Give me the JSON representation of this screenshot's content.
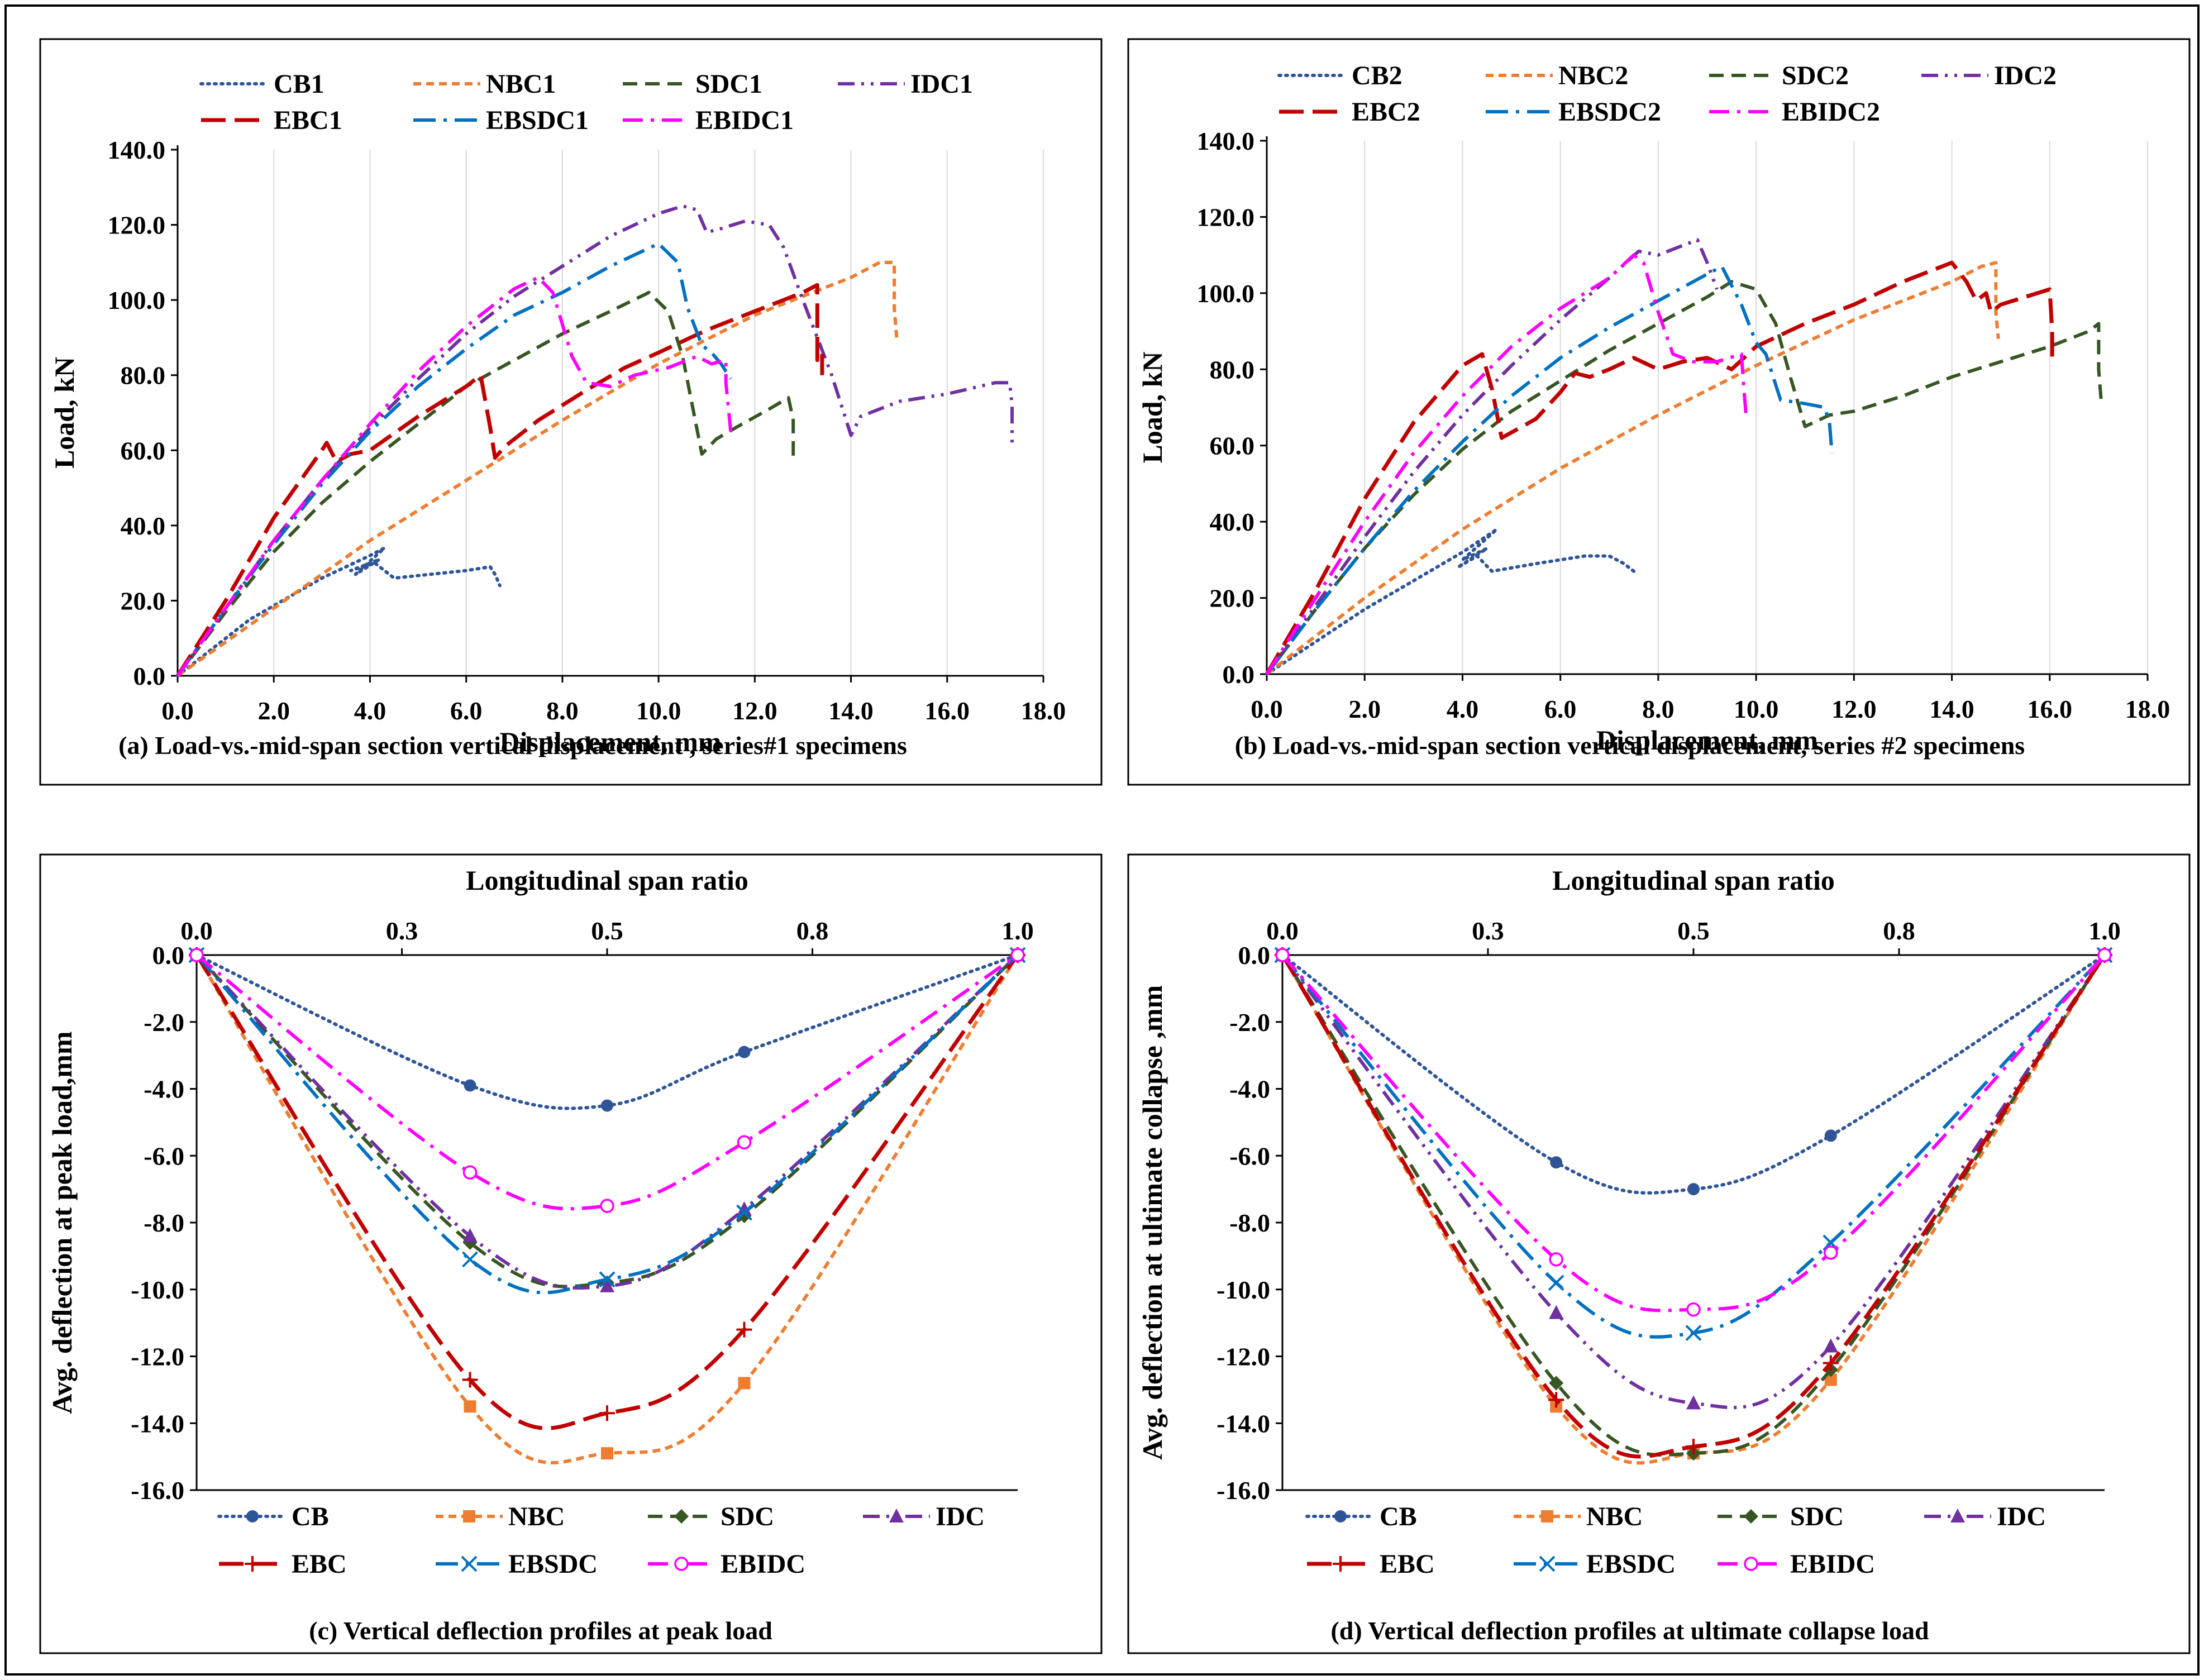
{
  "colors": {
    "CB": "#2f5597",
    "NBC": "#ed7d31",
    "SDC": "#375623",
    "IDC": "#7030a0",
    "EBC": "#c00000",
    "EBSDC": "#0070c0",
    "EBIDC": "#ff00ff"
  },
  "chart_data": [
    {
      "type": "line",
      "id": "a",
      "caption": "(a) Load-vs.-mid-span section  vertical displacement , series#1 specimens",
      "xlabel": "Displacement, mm",
      "ylabel": "Load, kN",
      "xlim": [
        0,
        18
      ],
      "ylim": [
        0,
        140
      ],
      "xticks": [
        "0.0",
        "2.0",
        "4.0",
        "6.0",
        "8.0",
        "10.0",
        "12.0",
        "14.0",
        "16.0",
        "18.0"
      ],
      "yticks": [
        "0.0",
        "20.0",
        "40.0",
        "60.0",
        "80.0",
        "100.0",
        "120.0",
        "140.0"
      ],
      "grid": "vertical",
      "legend": [
        "CB1",
        "NBC1",
        "SDC1",
        "IDC1",
        "EBC1",
        "EBSDC1",
        "EBIDC1"
      ],
      "series": [
        {
          "name": "CB1",
          "key": "CB",
          "x": [
            0,
            1.5,
            3.0,
            4.0,
            4.3,
            3.7,
            4.2,
            3.6,
            4.1,
            4.5,
            6.0,
            6.5,
            6.6,
            6.7
          ],
          "y": [
            0,
            15,
            26,
            32,
            34,
            27,
            31,
            28,
            30,
            26,
            28,
            29,
            27,
            24
          ]
        },
        {
          "name": "NBC1",
          "key": "NBC",
          "x": [
            0,
            2,
            4,
            6,
            8,
            10,
            12,
            13,
            14,
            14.6,
            14.9,
            14.9,
            14.95
          ],
          "y": [
            0,
            18,
            36,
            52,
            68,
            83,
            96,
            101,
            106,
            110,
            110,
            98,
            90
          ]
        },
        {
          "name": "SDC1",
          "key": "SDC",
          "x": [
            0,
            1,
            2,
            3,
            4,
            5,
            6,
            7,
            8,
            9,
            9.8,
            10.2,
            10.5,
            10.7,
            10.9,
            11.2,
            11.6,
            12.3,
            12.7,
            12.8,
            12.8
          ],
          "y": [
            0,
            17,
            33,
            46,
            57,
            67,
            77,
            84,
            91,
            97,
            102,
            97,
            85,
            72,
            59,
            63,
            66,
            71,
            74,
            68,
            58
          ]
        },
        {
          "name": "IDC1",
          "key": "IDC",
          "x": [
            0,
            1,
            2,
            3,
            4,
            5,
            6,
            7,
            8,
            9,
            10,
            10.5,
            10.8,
            11.0,
            11.3,
            11.8,
            12.3,
            12.6,
            13.0,
            13.6,
            14.0,
            14.2,
            15.0,
            16.0,
            17.0,
            17.3,
            17.35,
            17.35
          ],
          "y": [
            0,
            18,
            36,
            52,
            66,
            79,
            91,
            101,
            109,
            117,
            123,
            125,
            124,
            118,
            119,
            121,
            120,
            114,
            100,
            80,
            64,
            69,
            73,
            75,
            78,
            78,
            72,
            62
          ]
        },
        {
          "name": "EBC1",
          "key": "EBC",
          "x": [
            0,
            1,
            2,
            3,
            3.1,
            3.3,
            3.6,
            4,
            5,
            6,
            6.3,
            6.5,
            6.6,
            6.8,
            7.5,
            8.5,
            9.3,
            10,
            11,
            12,
            13,
            13.3,
            13.3,
            13.4,
            13.4
          ],
          "y": [
            0,
            20,
            42,
            60,
            62,
            57,
            59,
            60,
            69,
            77,
            80,
            66,
            58,
            61,
            68,
            76,
            82,
            86,
            92,
            97,
            102,
            104,
            84,
            86,
            80
          ]
        },
        {
          "name": "EBSDC1",
          "key": "EBSDC",
          "x": [
            0,
            1,
            2,
            3,
            4,
            5,
            6,
            7,
            8,
            9,
            10,
            10.4,
            10.6,
            10.9,
            11.1,
            11.3,
            11.5
          ],
          "y": [
            0,
            18,
            35,
            51,
            65,
            77,
            87,
            96,
            102,
            109,
            115,
            110,
            98,
            88,
            86,
            83,
            79
          ]
        },
        {
          "name": "EBIDC1",
          "key": "EBIDC",
          "x": [
            0,
            1,
            2,
            3,
            4,
            5,
            6,
            7,
            7.5,
            7.8,
            8.2,
            8.5,
            9.0,
            9.5,
            10.2,
            10.8,
            11.1,
            11.4,
            11.4,
            11.5
          ],
          "y": [
            0,
            18,
            36,
            52,
            67,
            81,
            93,
            103,
            106,
            102,
            85,
            78,
            77,
            80,
            82,
            85,
            83,
            84,
            78,
            65
          ]
        }
      ]
    },
    {
      "type": "line",
      "id": "b",
      "caption": "(b) Load-vs.-mid-span section vertical displacement, series   #2 specimens",
      "xlabel": "Displacement, mm",
      "ylabel": "Load, kN",
      "xlim": [
        0,
        18
      ],
      "ylim": [
        0,
        140
      ],
      "xticks": [
        "0.0",
        "2.0",
        "4.0",
        "6.0",
        "8.0",
        "10.0",
        "12.0",
        "14.0",
        "16.0",
        "18.0"
      ],
      "yticks": [
        "0.0",
        "20.0",
        "40.0",
        "60.0",
        "80.0",
        "100.0",
        "120.0",
        "140.0"
      ],
      "grid": "vertical",
      "legend": [
        "CB2",
        "NBC2",
        "SDC2",
        "IDC2",
        "EBC2",
        "EBSDC2",
        "EBIDC2"
      ],
      "series": [
        {
          "name": "CB2",
          "key": "CB",
          "x": [
            0,
            2,
            4,
            4.7,
            4.0,
            4.5,
            3.9,
            4.3,
            4.6,
            5.5,
            6.5,
            7.0,
            7.3,
            7.5
          ],
          "y": [
            0,
            17,
            32,
            38,
            30,
            33,
            28,
            31,
            27,
            29,
            31,
            31,
            29,
            27
          ]
        },
        {
          "name": "NBC2",
          "key": "NBC",
          "x": [
            0,
            2,
            4,
            6,
            8,
            10,
            12,
            13,
            14,
            14.6,
            14.9,
            14.9,
            14.95
          ],
          "y": [
            0,
            20,
            38,
            54,
            68,
            81,
            93,
            98,
            103,
            107,
            108,
            95,
            88
          ]
        },
        {
          "name": "SDC2",
          "key": "SDC",
          "x": [
            0,
            1,
            2,
            3,
            4,
            5,
            6,
            7,
            8,
            9,
            9.5,
            10,
            10.4,
            10.7,
            11.0,
            11.5,
            12.0,
            13.0,
            14,
            15,
            16,
            16.8,
            17.0,
            17.0,
            17.05
          ],
          "y": [
            0,
            17,
            33,
            47,
            59,
            69,
            77,
            85,
            92,
            99,
            103,
            101,
            92,
            78,
            65,
            68,
            69,
            73,
            78,
            82,
            86,
            90,
            92,
            80,
            72
          ]
        },
        {
          "name": "IDC2",
          "key": "IDC",
          "x": [
            0,
            1,
            2,
            3,
            4,
            5,
            6,
            7,
            7.6,
            8.0,
            8.4,
            8.8,
            9.0,
            9.2
          ],
          "y": [
            0,
            18,
            36,
            53,
            68,
            81,
            93,
            104,
            111,
            110,
            112,
            114,
            108,
            101
          ]
        },
        {
          "name": "EBC2",
          "key": "EBC",
          "x": [
            0,
            1,
            2,
            3,
            4,
            4.4,
            4.6,
            4.8,
            5.5,
            6,
            6.3,
            6.6,
            7,
            7.5,
            8,
            8.5,
            9,
            9.5,
            10,
            11,
            12,
            13,
            14,
            14.3,
            14.5,
            14.7,
            14.8,
            15,
            15.5,
            16,
            16.05,
            16.05
          ],
          "y": [
            0,
            22,
            46,
            66,
            81,
            84,
            75,
            62,
            67,
            74,
            79,
            78,
            80,
            83,
            80,
            82,
            83,
            80,
            86,
            92,
            97,
            103,
            108,
            103,
            98,
            100,
            95,
            97,
            99,
            101,
            90,
            81
          ]
        },
        {
          "name": "EBSDC2",
          "key": "EBSDC",
          "x": [
            0,
            1,
            2,
            3,
            4,
            5,
            6,
            7,
            8,
            9,
            9.3,
            9.7,
            10.0,
            10.2,
            10.5,
            11.0,
            11.4,
            11.5,
            11.55
          ],
          "y": [
            0,
            17,
            33,
            48,
            61,
            73,
            83,
            91,
            98,
            105,
            107,
            97,
            87,
            84,
            72,
            71,
            70,
            66,
            58
          ]
        },
        {
          "name": "EBIDC2",
          "key": "EBIDC",
          "x": [
            0,
            1,
            2,
            3,
            4,
            5,
            6,
            7,
            7.5,
            7.7,
            8.0,
            8.3,
            8.7,
            9.2,
            9.7,
            9.75,
            9.8
          ],
          "y": [
            0,
            20,
            40,
            58,
            73,
            86,
            96,
            104,
            110,
            108,
            95,
            84,
            82,
            82,
            84,
            75,
            67
          ]
        }
      ]
    },
    {
      "type": "line",
      "id": "c",
      "caption": "(c) Vertical deflection profiles at peak load",
      "xlabel": "Longitudinal span ratio",
      "ylabel": "Avg. deflection at peak load,mm",
      "xlim": [
        0,
        1
      ],
      "ylim": [
        -16,
        0
      ],
      "xticks": [
        "0.0",
        "0.3",
        "0.5",
        "0.8",
        "1.0"
      ],
      "yticks": [
        "0.0",
        "-2.0",
        "-4.0",
        "-6.0",
        "-8.0",
        "-10.0",
        "-12.0",
        "-14.0",
        "-16.0"
      ],
      "grid": "none",
      "legend": [
        "CB",
        "NBC",
        "SDC",
        "IDC",
        "EBC",
        "EBSDC",
        "EBIDC"
      ],
      "series": [
        {
          "name": "CB",
          "key": "CB",
          "marker": "circle",
          "x": [
            0,
            0.333,
            0.5,
            0.667,
            1
          ],
          "y": [
            0,
            -3.9,
            -4.5,
            -2.9,
            0
          ]
        },
        {
          "name": "NBC",
          "key": "NBC",
          "marker": "square",
          "x": [
            0,
            0.333,
            0.5,
            0.667,
            1
          ],
          "y": [
            0,
            -13.5,
            -14.9,
            -12.8,
            0
          ]
        },
        {
          "name": "SDC",
          "key": "SDC",
          "marker": "diamond",
          "x": [
            0,
            0.333,
            0.5,
            0.667,
            1
          ],
          "y": [
            0,
            -8.6,
            -9.8,
            -7.8,
            0
          ]
        },
        {
          "name": "IDC",
          "key": "IDC",
          "marker": "triangle",
          "x": [
            0,
            0.333,
            0.5,
            0.667,
            1
          ],
          "y": [
            0,
            -8.4,
            -9.9,
            -7.6,
            0
          ]
        },
        {
          "name": "EBC",
          "key": "EBC",
          "marker": "plus",
          "x": [
            0,
            0.333,
            0.5,
            0.667,
            1
          ],
          "y": [
            0,
            -12.7,
            -13.7,
            -11.2,
            0
          ]
        },
        {
          "name": "EBSDC",
          "key": "EBSDC",
          "marker": "x",
          "x": [
            0,
            0.333,
            0.5,
            0.667,
            1
          ],
          "y": [
            0,
            -9.1,
            -9.7,
            -7.7,
            0
          ]
        },
        {
          "name": "EBIDC",
          "key": "EBIDC",
          "marker": "opencircle",
          "x": [
            0,
            0.333,
            0.5,
            0.667,
            1
          ],
          "y": [
            0,
            -6.5,
            -7.5,
            -5.6,
            0
          ]
        }
      ]
    },
    {
      "type": "line",
      "id": "d",
      "caption": "(d) Vertical deflection profiles at   ultimate collapse load",
      "xlabel": "Longitudinal span ratio",
      "ylabel": "Avg. deflection at ultimate collapse ,mm",
      "xlim": [
        0,
        1
      ],
      "ylim": [
        -16,
        0
      ],
      "xticks": [
        "0.0",
        "0.3",
        "0.5",
        "0.8",
        "1.0"
      ],
      "yticks": [
        "0.0",
        "-2.0",
        "-4.0",
        "-6.0",
        "-8.0",
        "-10.0",
        "-12.0",
        "-14.0",
        "-16.0"
      ],
      "grid": "none",
      "legend": [
        "CB",
        "NBC",
        "SDC",
        "IDC",
        "EBC",
        "EBSDC",
        "EBIDC"
      ],
      "series": [
        {
          "name": "CB",
          "key": "CB",
          "marker": "circle",
          "x": [
            0,
            0.333,
            0.5,
            0.667,
            1
          ],
          "y": [
            0,
            -6.2,
            -7.0,
            -5.4,
            0
          ]
        },
        {
          "name": "NBC",
          "key": "NBC",
          "marker": "square",
          "x": [
            0,
            0.333,
            0.5,
            0.667,
            1
          ],
          "y": [
            0,
            -13.5,
            -14.9,
            -12.7,
            0
          ]
        },
        {
          "name": "SDC",
          "key": "SDC",
          "marker": "diamond",
          "x": [
            0,
            0.333,
            0.5,
            0.667,
            1
          ],
          "y": [
            0,
            -12.8,
            -14.9,
            -12.4,
            0
          ]
        },
        {
          "name": "IDC",
          "key": "IDC",
          "marker": "triangle",
          "x": [
            0,
            0.333,
            0.5,
            0.667,
            1
          ],
          "y": [
            0,
            -10.7,
            -13.4,
            -11.7,
            0
          ]
        },
        {
          "name": "EBC",
          "key": "EBC",
          "marker": "plus",
          "x": [
            0,
            0.333,
            0.5,
            0.667,
            1
          ],
          "y": [
            0,
            -13.3,
            -14.7,
            -12.2,
            0
          ]
        },
        {
          "name": "EBSDC",
          "key": "EBSDC",
          "marker": "x",
          "x": [
            0,
            0.333,
            0.5,
            0.667,
            1
          ],
          "y": [
            0,
            -9.8,
            -11.3,
            -8.6,
            0
          ]
        },
        {
          "name": "EBIDC",
          "key": "EBIDC",
          "marker": "opencircle",
          "x": [
            0,
            0.333,
            0.5,
            0.667,
            1
          ],
          "y": [
            0,
            -9.1,
            -10.6,
            -8.9,
            0
          ]
        }
      ]
    }
  ]
}
